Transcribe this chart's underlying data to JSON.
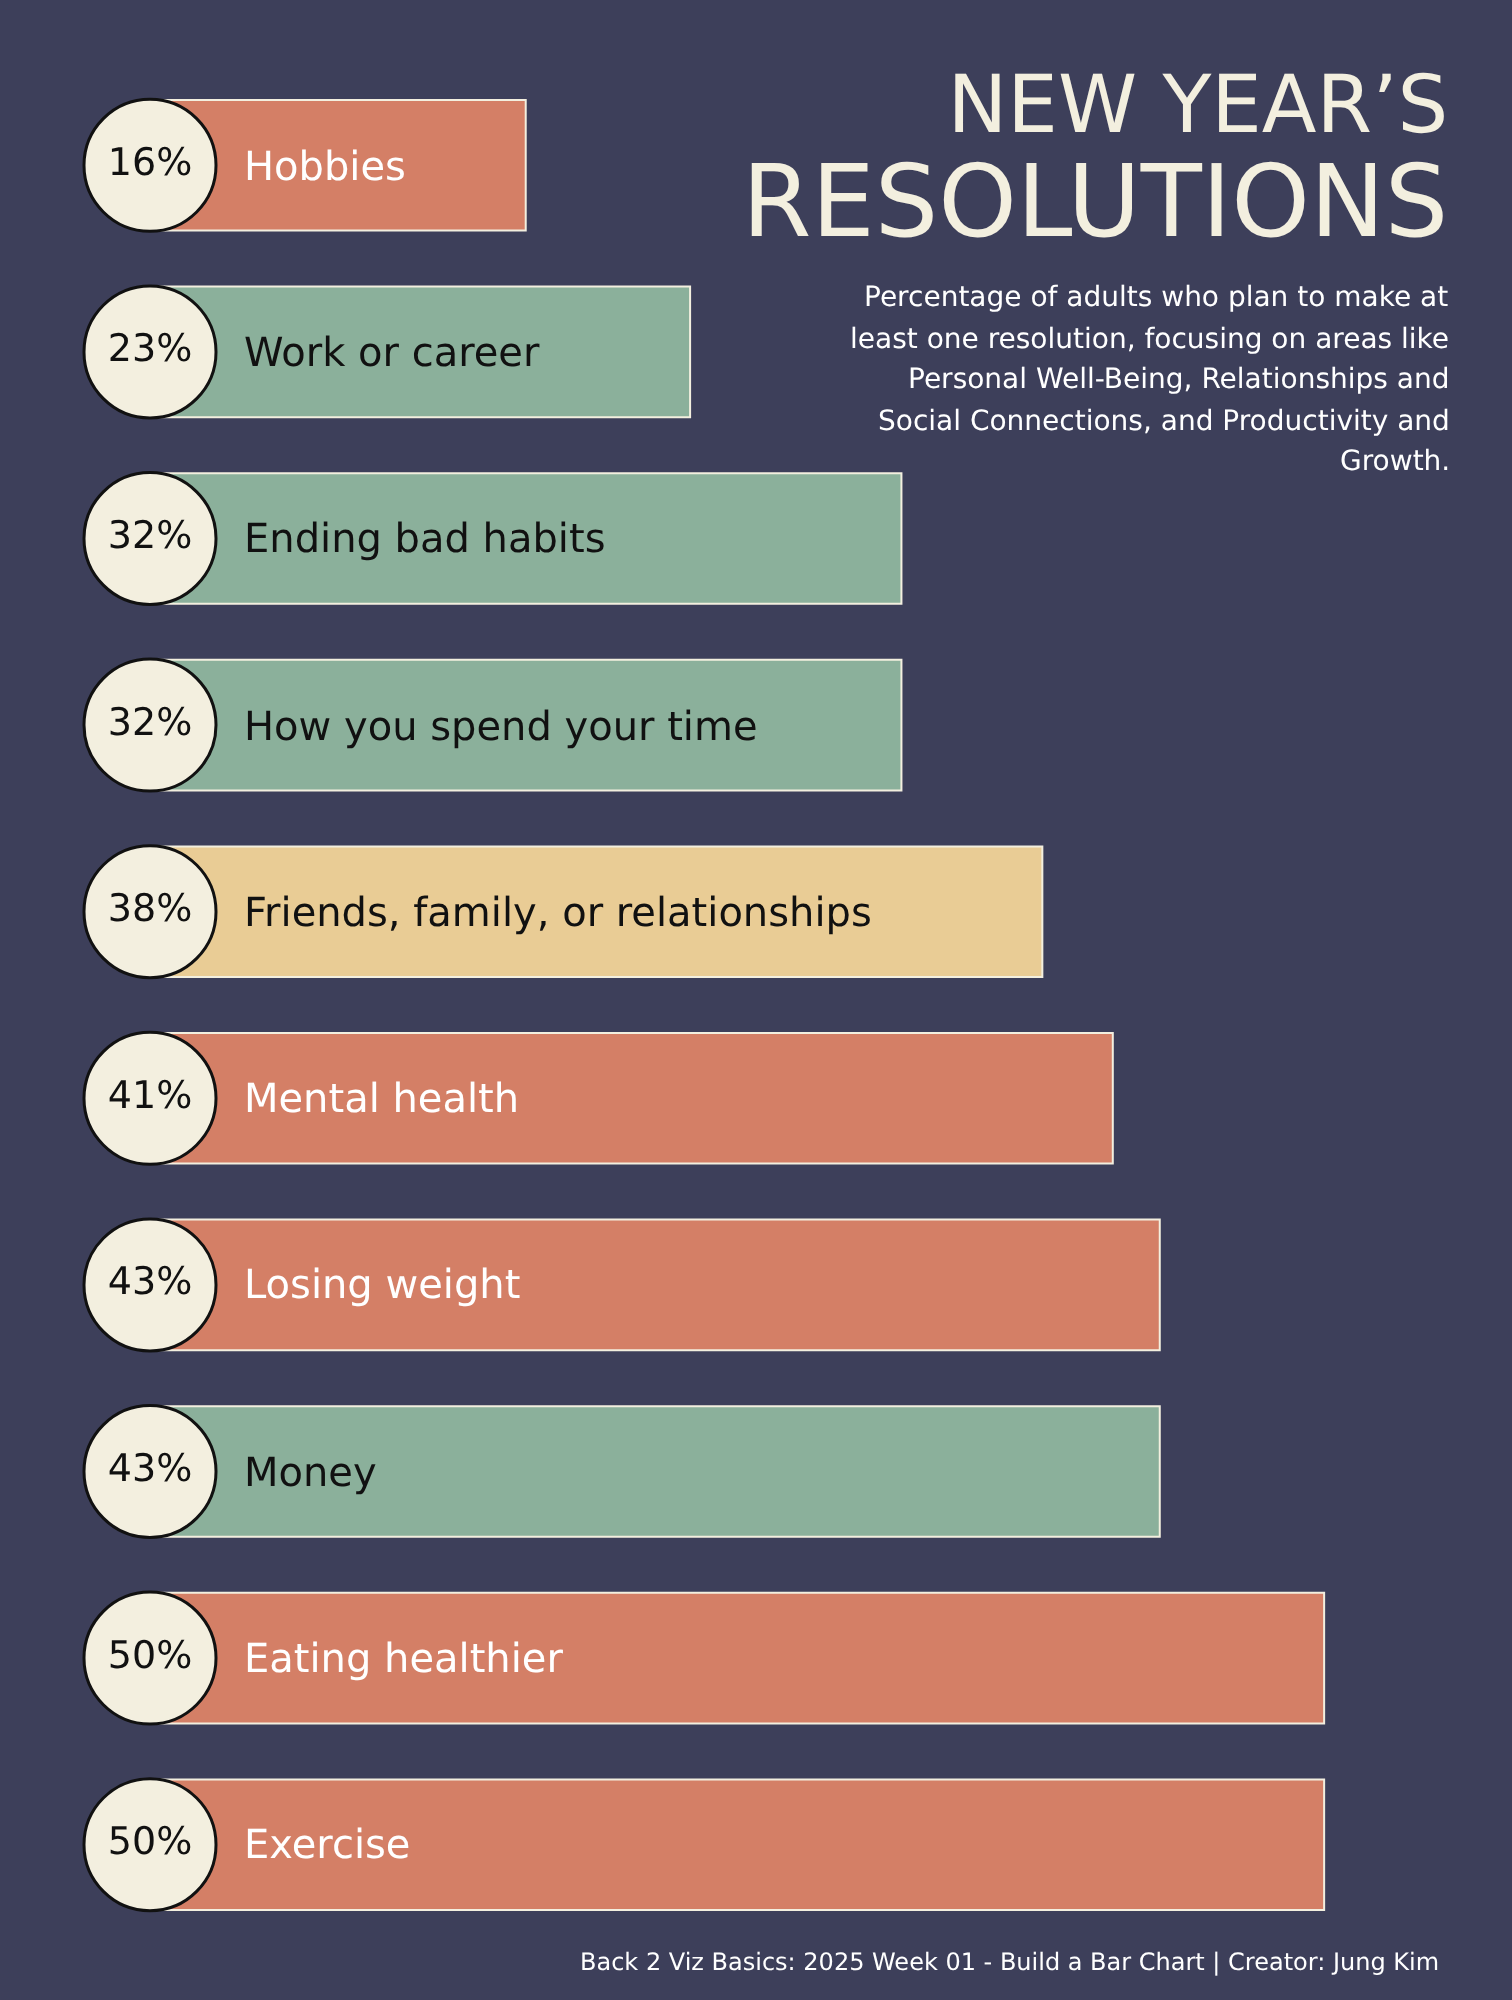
{
  "chart_data": {
    "type": "bar",
    "orientation": "horizontal",
    "title": "NEW YEAR’S RESOLUTIONS",
    "subtitle": "Percentage of adults who plan to make at least one resolution, focusing on areas like Personal Well-Being, Relationships and Social Connections, and Productivity and Growth.",
    "categories": [
      "Hobbies",
      "Work or career",
      "Ending bad habits",
      "How you spend your time",
      "Friends, family, or relationships",
      "Mental health",
      "Losing weight",
      "Money",
      "Eating healthier",
      "Exercise"
    ],
    "series": [
      {
        "color": "#d47f66",
        "values": [
          16,
          null,
          null,
          null,
          null,
          41,
          43,
          null,
          50,
          50
        ],
        "value_labels": [
          "16%",
          null,
          null,
          null,
          null,
          "41%",
          "43%",
          null,
          "50%",
          "50%"
        ]
      },
      {
        "color": "#e9cc95",
        "values": [
          null,
          null,
          null,
          null,
          38,
          null,
          null,
          null,
          null,
          null
        ],
        "value_labels": [
          null,
          null,
          null,
          null,
          "38%",
          null,
          null,
          null,
          null,
          null
        ]
      },
      {
        "color": "#8bb09b",
        "values": [
          null,
          23,
          32,
          32,
          null,
          null,
          null,
          43,
          null,
          null
        ],
        "value_labels": [
          null,
          "23%",
          "32%",
          "32%",
          null,
          null,
          null,
          "43%",
          null,
          null
        ]
      }
    ],
    "xlim": [
      0,
      58
    ],
    "tick_labels": false,
    "grid": false,
    "legend": false,
    "annotations": [
      "Back 2 Viz Basics: 2025 Week 01 - Build a Bar Chart | Creator: Jung Kim"
    ]
  }
}
